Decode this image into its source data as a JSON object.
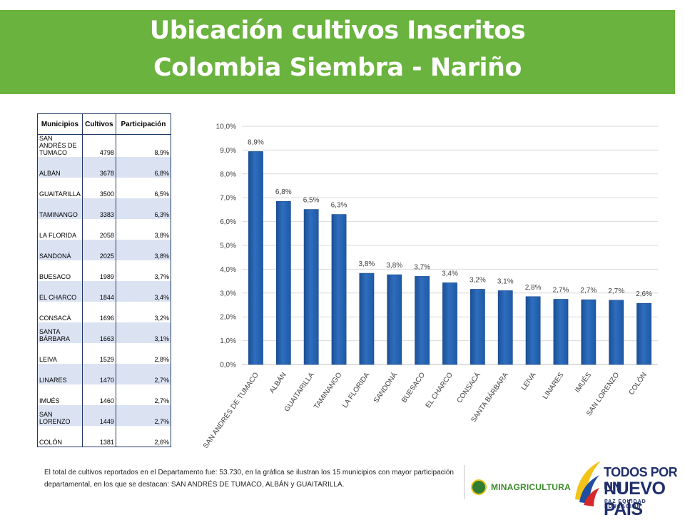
{
  "header": {
    "title_line1": "Ubicación cultivos Inscritos",
    "title_line2": "Colombia Siembra - Nariño"
  },
  "table": {
    "headers": [
      "Municipios",
      "Cultivos",
      "Participación"
    ],
    "rows": [
      [
        "SAN ANDRÉS DE TUMACO",
        "4798",
        "8,9%"
      ],
      [
        "ALBÁN",
        "3678",
        "6,8%"
      ],
      [
        "GUAITARILLA",
        "3500",
        "6,5%"
      ],
      [
        "TAMINANGO",
        "3383",
        "6,3%"
      ],
      [
        "LA FLORIDA",
        "2058",
        "3,8%"
      ],
      [
        "SANDONÁ",
        "2025",
        "3,8%"
      ],
      [
        "BUESACO",
        "1989",
        "3,7%"
      ],
      [
        "EL CHARCO",
        "1844",
        "3,4%"
      ],
      [
        "CONSACÁ",
        "1696",
        "3,2%"
      ],
      [
        "SANTA BÁRBARA",
        "1663",
        "3,1%"
      ],
      [
        "LEIVA",
        "1529",
        "2,8%"
      ],
      [
        "LINARES",
        "1470",
        "2,7%"
      ],
      [
        "IMUÉS",
        "1460",
        "2,7%"
      ],
      [
        "SAN LORENZO",
        "1449",
        "2,7%"
      ],
      [
        "COLÓN",
        "1381",
        "2,6%"
      ]
    ]
  },
  "chart_data": {
    "type": "bar",
    "categories": [
      "SAN ANDRÉS DE TUMACO",
      "ALBÁN",
      "GUAITARILLA",
      "TAMINANGO",
      "LA FLORIDA",
      "SANDONÁ",
      "BUESACO",
      "EL CHARCO",
      "CONSACÁ",
      "SANTA BÁRBARA",
      "LEIVA",
      "LINARES",
      "IMUÉS",
      "SAN LORENZO",
      "COLÓN"
    ],
    "values": [
      8.94,
      6.85,
      6.51,
      6.3,
      3.83,
      3.77,
      3.7,
      3.43,
      3.16,
      3.1,
      2.85,
      2.74,
      2.72,
      2.7,
      2.57
    ],
    "data_labels": [
      "8,9%",
      "6,8%",
      "6,5%",
      "6,3%",
      "3,8%",
      "3,8%",
      "3,7%",
      "3,4%",
      "3,2%",
      "3,1%",
      "2,8%",
      "2,7%",
      "2,7%",
      "2,7%",
      "2,6%"
    ],
    "y_ticks": [
      "0,0%",
      "1,0%",
      "2,0%",
      "3,0%",
      "4,0%",
      "5,0%",
      "6,0%",
      "7,0%",
      "8,0%",
      "9,0%",
      "10,0%"
    ],
    "ylim": [
      0,
      10
    ],
    "grid": true,
    "bar_color": "#2f6ebd",
    "title": "",
    "xlabel": "",
    "ylabel": ""
  },
  "footer": {
    "text": "El total de cultivos reportados en el Departamento fue: 53.730, en la gráfica se ilustran los 15 municipios con mayor participación departamental, en los que se destacan: SAN ANDRÉS DE TUMACO, ALBÁN y GUAITARILLA.",
    "ministry_label": "MINAGRICULTURA",
    "slogan_line1": "TODOS POR UN",
    "slogan_line2": "NUEVO PAÍS",
    "slogan_line3": "PAZ  EQUIDAD  EDUCACIÓN"
  },
  "colors": {
    "banner": "#6ab33e",
    "bar": "#2f6ebd",
    "table_alt_row": "#dbe3f3"
  }
}
